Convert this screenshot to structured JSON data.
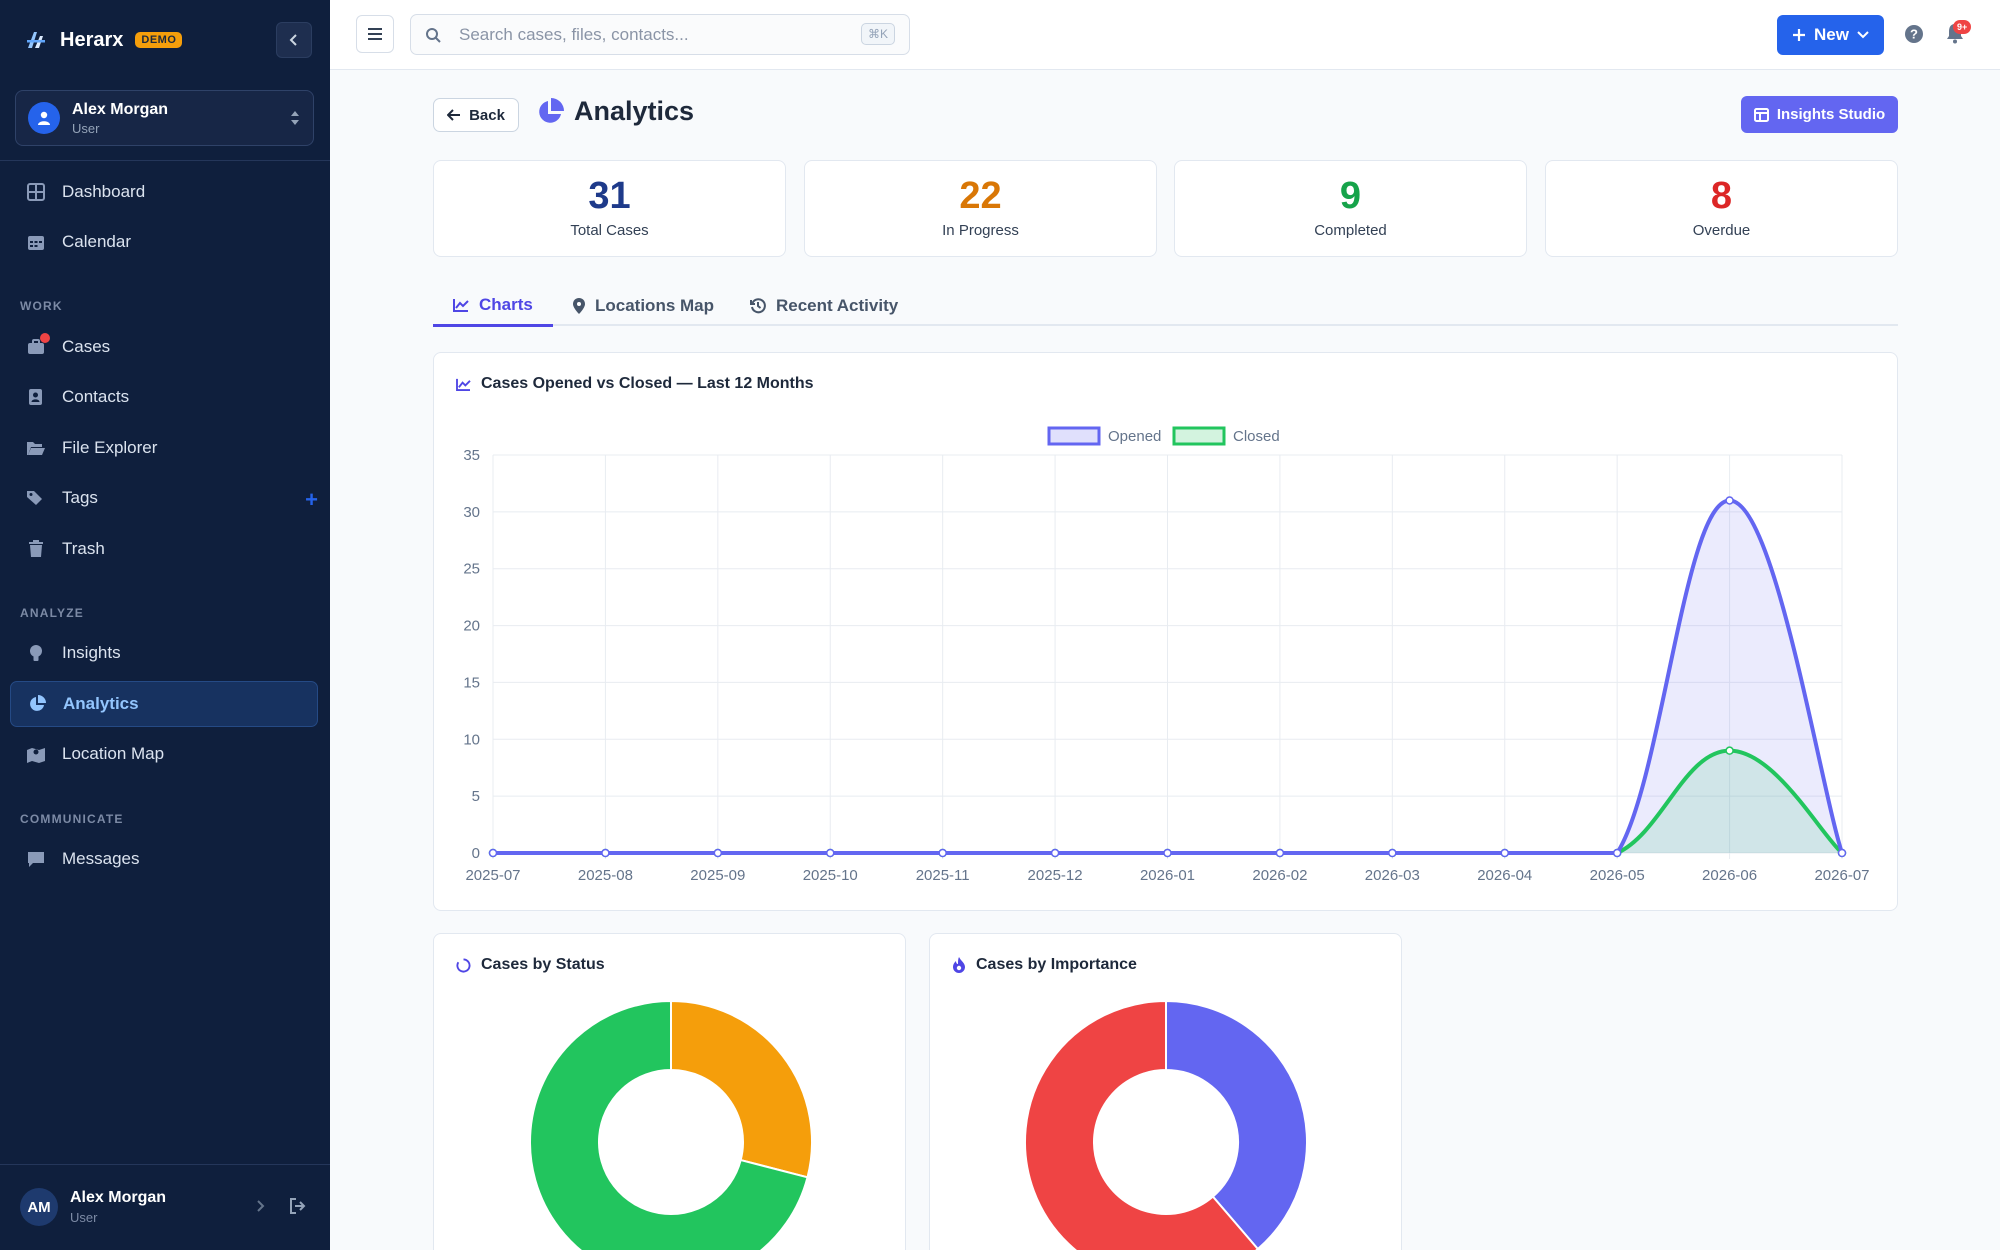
{
  "app": {
    "name": "Herarx",
    "badge": "DEMO"
  },
  "user": {
    "name": "Alex Morgan",
    "role": "User",
    "initials": "AM"
  },
  "nav": {
    "top": [
      {
        "label": "Dashboard",
        "icon": "grid-icon"
      },
      {
        "label": "Calendar",
        "icon": "calendar-icon"
      }
    ],
    "sections": {
      "work": "WORK",
      "analyze": "ANALYZE",
      "communicate": "COMMUNICATE"
    },
    "work": [
      {
        "label": "Cases",
        "icon": "briefcase-icon"
      },
      {
        "label": "Contacts",
        "icon": "contact-card-icon"
      },
      {
        "label": "File Explorer",
        "icon": "folder-open-icon"
      },
      {
        "label": "Tags",
        "icon": "tags-icon"
      },
      {
        "label": "Trash",
        "icon": "trash-icon"
      }
    ],
    "analyze": [
      {
        "label": "Insights",
        "icon": "lightbulb-icon"
      },
      {
        "label": "Analytics",
        "icon": "pie-chart-icon",
        "active": true
      },
      {
        "label": "Location Map",
        "icon": "map-icon"
      }
    ],
    "communicate": [
      {
        "label": "Messages",
        "icon": "message-icon"
      }
    ]
  },
  "topbar": {
    "search_placeholder": "Search cases, files, contacts...",
    "shortcut": "⌘K",
    "new_label": "New",
    "notif_count": "9+"
  },
  "page": {
    "back_label": "Back",
    "title": "Analytics",
    "studio_label": "Insights Studio"
  },
  "stats": [
    {
      "value": "31",
      "label": "Total Cases",
      "color": "#1e3a8a"
    },
    {
      "value": "22",
      "label": "In Progress",
      "color": "#d97706"
    },
    {
      "value": "9",
      "label": "Completed",
      "color": "#16a34a"
    },
    {
      "value": "8",
      "label": "Overdue",
      "color": "#dc2626"
    }
  ],
  "tabs": [
    {
      "label": "Charts",
      "active": true
    },
    {
      "label": "Locations Map"
    },
    {
      "label": "Recent Activity"
    }
  ],
  "chart_data": [
    {
      "type": "line",
      "title": "Cases Opened vs Closed — Last 12 Months",
      "x": [
        "2025-07",
        "2025-08",
        "2025-09",
        "2025-10",
        "2025-11",
        "2025-12",
        "2026-01",
        "2026-02",
        "2026-03",
        "2026-04",
        "2026-05",
        "2026-06",
        "2026-07"
      ],
      "series": [
        {
          "name": "Opened",
          "values": [
            0,
            0,
            0,
            0,
            0,
            0,
            0,
            0,
            0,
            0,
            0,
            31,
            0
          ],
          "color": "#6366f1"
        },
        {
          "name": "Closed",
          "values": [
            0,
            0,
            0,
            0,
            0,
            0,
            0,
            0,
            0,
            0,
            0,
            9,
            0
          ],
          "color": "#22c55e"
        }
      ],
      "ylim": [
        0,
        35
      ],
      "yticks": [
        0,
        5,
        10,
        15,
        20,
        25,
        30,
        35
      ],
      "grid": true,
      "legend": "top-center"
    },
    {
      "type": "pie",
      "title": "Cases by Status",
      "slices": [
        {
          "value": 9,
          "color": "#f59e0b"
        },
        {
          "value": 22,
          "color": "#22c55e"
        }
      ]
    },
    {
      "type": "pie",
      "title": "Cases by Importance",
      "slices": [
        {
          "value": 12,
          "color": "#6366f1"
        },
        {
          "value": 19,
          "color": "#ef4444"
        }
      ]
    }
  ]
}
